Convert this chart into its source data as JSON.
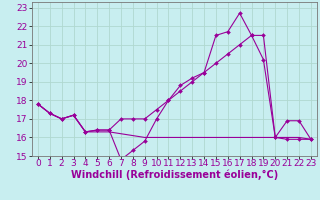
{
  "xlabel": "Windchill (Refroidissement éolien,°C)",
  "bg_color": "#c8eef0",
  "grid_color": "#b0d8d0",
  "line_color": "#990099",
  "xlim": [
    -0.5,
    23.5
  ],
  "ylim": [
    15,
    23.3
  ],
  "yticks": [
    15,
    16,
    17,
    18,
    19,
    20,
    21,
    22,
    23
  ],
  "xticks": [
    0,
    1,
    2,
    3,
    4,
    5,
    6,
    7,
    8,
    9,
    10,
    11,
    12,
    13,
    14,
    15,
    16,
    17,
    18,
    19,
    20,
    21,
    22,
    23
  ],
  "line1_x": [
    0,
    1,
    2,
    3,
    4,
    5,
    6,
    7,
    8,
    9,
    10,
    11,
    12,
    13,
    14,
    15,
    16,
    17,
    18,
    19,
    20,
    21,
    22,
    23
  ],
  "line1_y": [
    17.8,
    17.3,
    17.0,
    17.2,
    16.3,
    16.4,
    16.4,
    14.8,
    15.3,
    15.8,
    17.0,
    18.0,
    18.8,
    19.2,
    19.5,
    21.5,
    21.7,
    22.7,
    21.5,
    20.2,
    16.0,
    16.9,
    16.9,
    15.9
  ],
  "line2_x": [
    0,
    1,
    2,
    3,
    4,
    5,
    6,
    7,
    8,
    9,
    10,
    11,
    12,
    13,
    14,
    15,
    16,
    17,
    18,
    19,
    20,
    21,
    22,
    23
  ],
  "line2_y": [
    17.8,
    17.3,
    17.0,
    17.2,
    16.3,
    16.4,
    16.4,
    17.0,
    17.0,
    17.0,
    17.5,
    18.0,
    18.5,
    19.0,
    19.5,
    20.0,
    20.5,
    21.0,
    21.5,
    21.5,
    16.0,
    15.9,
    15.9,
    15.9
  ],
  "line3_x": [
    0,
    1,
    2,
    3,
    4,
    5,
    6,
    9,
    12,
    14,
    15,
    16,
    17,
    18,
    19,
    20,
    21,
    22,
    23
  ],
  "line3_y": [
    17.8,
    17.3,
    17.0,
    17.2,
    16.3,
    16.3,
    16.3,
    16.0,
    16.0,
    16.0,
    16.0,
    16.0,
    16.0,
    16.0,
    16.0,
    16.0,
    16.0,
    16.0,
    15.9
  ],
  "xlabel_fontsize": 7,
  "tick_fontsize": 6.5
}
